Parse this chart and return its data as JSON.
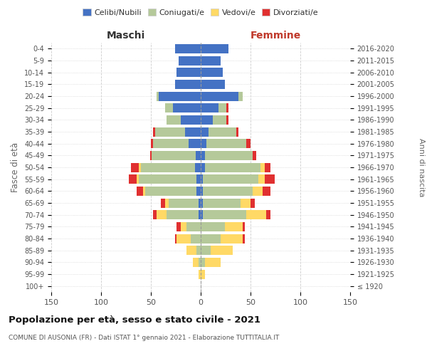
{
  "age_groups": [
    "100+",
    "95-99",
    "90-94",
    "85-89",
    "80-84",
    "75-79",
    "70-74",
    "65-69",
    "60-64",
    "55-59",
    "50-54",
    "45-49",
    "40-44",
    "35-39",
    "30-34",
    "25-29",
    "20-24",
    "15-19",
    "10-14",
    "5-9",
    "0-4"
  ],
  "birth_years": [
    "≤ 1920",
    "1921-1925",
    "1926-1930",
    "1931-1935",
    "1936-1940",
    "1941-1945",
    "1946-1950",
    "1951-1955",
    "1956-1960",
    "1961-1965",
    "1966-1970",
    "1971-1975",
    "1976-1980",
    "1981-1985",
    "1986-1990",
    "1991-1995",
    "1996-2000",
    "2001-2005",
    "2006-2010",
    "2011-2015",
    "2016-2020"
  ],
  "male": {
    "celibi": [
      0,
      0,
      0,
      0,
      0,
      0,
      2,
      2,
      4,
      4,
      6,
      5,
      12,
      16,
      20,
      28,
      42,
      26,
      24,
      22,
      26
    ],
    "coniugati": [
      0,
      0,
      2,
      4,
      10,
      14,
      32,
      30,
      52,
      58,
      54,
      44,
      36,
      30,
      14,
      8,
      2,
      0,
      0,
      0,
      0
    ],
    "vedovi": [
      0,
      2,
      6,
      10,
      14,
      6,
      10,
      4,
      2,
      2,
      2,
      0,
      0,
      0,
      0,
      0,
      0,
      0,
      0,
      0,
      0
    ],
    "divorziati": [
      0,
      0,
      0,
      0,
      2,
      4,
      4,
      4,
      6,
      8,
      8,
      2,
      2,
      2,
      0,
      0,
      0,
      0,
      0,
      0,
      0
    ]
  },
  "female": {
    "nubili": [
      0,
      0,
      0,
      0,
      0,
      0,
      2,
      2,
      2,
      2,
      4,
      4,
      6,
      8,
      12,
      18,
      38,
      24,
      22,
      20,
      28
    ],
    "coniugate": [
      0,
      0,
      4,
      10,
      20,
      24,
      44,
      38,
      50,
      56,
      56,
      48,
      40,
      28,
      14,
      8,
      4,
      0,
      0,
      0,
      0
    ],
    "vedove": [
      0,
      4,
      16,
      22,
      22,
      18,
      20,
      10,
      10,
      6,
      4,
      0,
      0,
      0,
      0,
      0,
      0,
      0,
      0,
      0,
      0
    ],
    "divorziate": [
      0,
      0,
      0,
      0,
      2,
      2,
      4,
      4,
      8,
      10,
      6,
      4,
      4,
      2,
      2,
      2,
      0,
      0,
      0,
      0,
      0
    ]
  },
  "colors": {
    "celibi": "#4472c4",
    "coniugati": "#b5c99a",
    "vedovi": "#ffd966",
    "divorziati": "#e03030"
  },
  "title": "Popolazione per età, sesso e stato civile - 2021",
  "subtitle": "COMUNE DI AUSONIA (FR) - Dati ISTAT 1° gennaio 2021 - Elaborazione TUTTITALIA.IT",
  "ylabel_left": "Fasce di età",
  "ylabel_right": "Anni di nascita",
  "xlabel_left": "Maschi",
  "xlabel_right": "Femmine",
  "xlim": 150,
  "legend_labels": [
    "Celibi/Nubili",
    "Coniugati/e",
    "Vedovi/e",
    "Divorziati/e"
  ],
  "background_color": "#ffffff",
  "grid_color": "#cccccc"
}
